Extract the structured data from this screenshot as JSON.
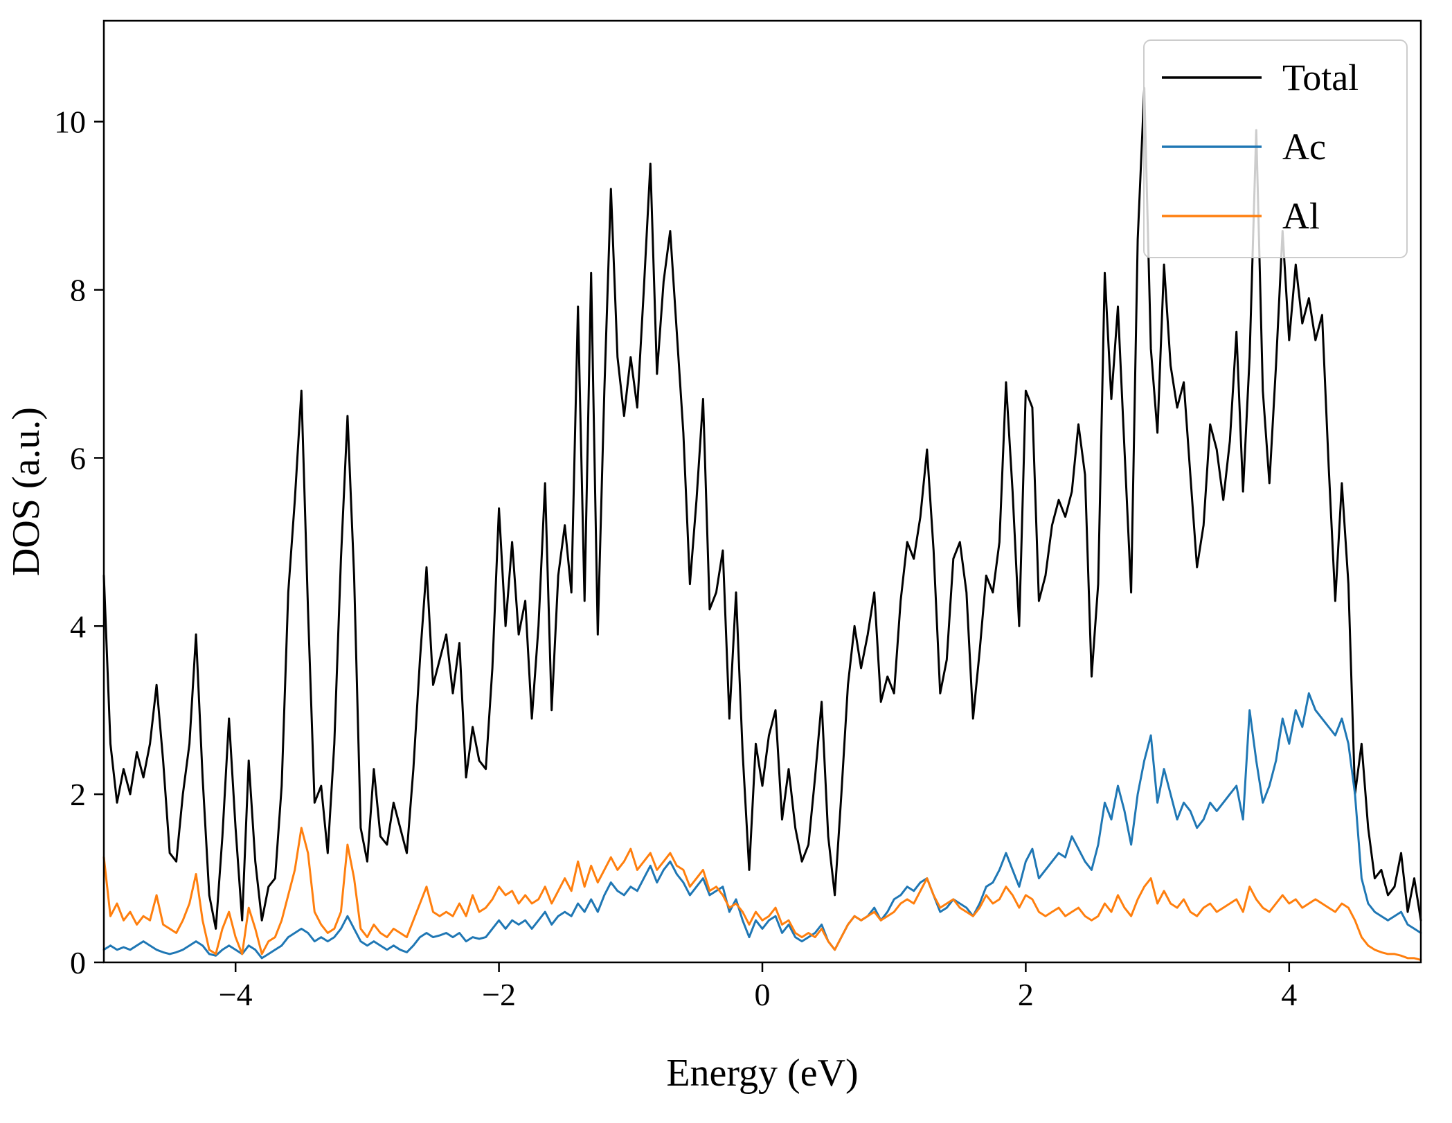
{
  "chart_data": {
    "type": "line",
    "title": "",
    "xlabel": "Energy (eV)",
    "ylabel": "DOS (a.u.)",
    "xlim": [
      -5,
      5
    ],
    "ylim": [
      0,
      11.2
    ],
    "x_ticks": [
      -4,
      -2,
      0,
      2,
      4
    ],
    "x_tick_labels": [
      "−4",
      "−2",
      "0",
      "2",
      "4"
    ],
    "y_ticks": [
      0,
      2,
      4,
      6,
      8,
      10
    ],
    "y_tick_labels": [
      "0",
      "2",
      "4",
      "6",
      "8",
      "10"
    ],
    "grid": false,
    "legend_position": "upper right",
    "x_start": -5.0,
    "x_step": 0.05,
    "series": [
      {
        "name": "Total",
        "color": "#000000",
        "values": [
          4.6,
          2.6,
          1.9,
          2.3,
          2.0,
          2.5,
          2.2,
          2.6,
          3.3,
          2.4,
          1.3,
          1.2,
          2.0,
          2.6,
          3.9,
          2.2,
          0.8,
          0.4,
          1.5,
          2.9,
          1.6,
          0.5,
          2.4,
          1.2,
          0.5,
          0.9,
          1.0,
          2.1,
          4.4,
          5.5,
          6.8,
          4.2,
          1.9,
          2.1,
          1.3,
          2.6,
          4.8,
          6.5,
          4.6,
          1.6,
          1.2,
          2.3,
          1.5,
          1.4,
          1.9,
          1.6,
          1.3,
          2.3,
          3.6,
          4.7,
          3.3,
          3.6,
          3.9,
          3.2,
          3.8,
          2.2,
          2.8,
          2.4,
          2.3,
          3.5,
          5.4,
          4.0,
          5.0,
          3.9,
          4.3,
          2.9,
          4.0,
          5.7,
          3.0,
          4.6,
          5.2,
          4.4,
          7.8,
          4.3,
          8.2,
          3.9,
          6.8,
          9.2,
          7.2,
          6.5,
          7.2,
          6.6,
          8.0,
          9.5,
          7.0,
          8.1,
          8.7,
          7.5,
          6.3,
          4.5,
          5.5,
          6.7,
          4.2,
          4.4,
          4.9,
          2.9,
          4.4,
          2.5,
          1.1,
          2.6,
          2.1,
          2.7,
          3.0,
          1.7,
          2.3,
          1.6,
          1.2,
          1.4,
          2.2,
          3.1,
          1.5,
          0.8,
          2.0,
          3.3,
          4.0,
          3.5,
          3.9,
          4.4,
          3.1,
          3.4,
          3.2,
          4.3,
          5.0,
          4.8,
          5.3,
          6.1,
          4.9,
          3.2,
          3.6,
          4.8,
          5.0,
          4.4,
          2.9,
          3.7,
          4.6,
          4.4,
          5.0,
          6.9,
          5.6,
          4.0,
          6.8,
          6.6,
          4.3,
          4.6,
          5.2,
          5.5,
          5.3,
          5.6,
          6.4,
          5.8,
          3.4,
          4.5,
          8.2,
          6.7,
          7.8,
          6.1,
          4.4,
          8.6,
          10.4,
          7.3,
          6.3,
          8.3,
          7.1,
          6.6,
          6.9,
          5.8,
          4.7,
          5.2,
          6.4,
          6.1,
          5.5,
          6.2,
          7.5,
          5.6,
          7.2,
          9.9,
          6.8,
          5.7,
          7.1,
          8.7,
          7.4,
          8.3,
          7.6,
          7.9,
          7.4,
          7.7,
          5.9,
          4.3,
          5.7,
          4.5,
          2.0,
          2.6,
          1.6,
          1.0,
          1.1,
          0.8,
          0.9,
          1.3,
          0.6,
          1.0,
          0.5
        ]
      },
      {
        "name": "Ac",
        "color": "#1f77b4",
        "values": [
          0.15,
          0.2,
          0.15,
          0.18,
          0.15,
          0.2,
          0.25,
          0.2,
          0.15,
          0.12,
          0.1,
          0.12,
          0.15,
          0.2,
          0.25,
          0.2,
          0.1,
          0.08,
          0.15,
          0.2,
          0.15,
          0.1,
          0.2,
          0.15,
          0.05,
          0.1,
          0.15,
          0.2,
          0.3,
          0.35,
          0.4,
          0.35,
          0.25,
          0.3,
          0.25,
          0.3,
          0.4,
          0.55,
          0.4,
          0.25,
          0.2,
          0.25,
          0.2,
          0.15,
          0.2,
          0.15,
          0.12,
          0.2,
          0.3,
          0.35,
          0.3,
          0.32,
          0.35,
          0.3,
          0.35,
          0.25,
          0.3,
          0.28,
          0.3,
          0.4,
          0.5,
          0.4,
          0.5,
          0.45,
          0.5,
          0.4,
          0.5,
          0.6,
          0.45,
          0.55,
          0.6,
          0.55,
          0.7,
          0.6,
          0.75,
          0.6,
          0.8,
          0.95,
          0.85,
          0.8,
          0.9,
          0.85,
          1.0,
          1.15,
          0.95,
          1.1,
          1.2,
          1.05,
          0.95,
          0.8,
          0.9,
          1.0,
          0.8,
          0.85,
          0.9,
          0.6,
          0.75,
          0.5,
          0.3,
          0.5,
          0.4,
          0.5,
          0.55,
          0.35,
          0.45,
          0.3,
          0.25,
          0.3,
          0.35,
          0.45,
          0.25,
          0.15,
          0.3,
          0.45,
          0.55,
          0.5,
          0.55,
          0.65,
          0.5,
          0.6,
          0.75,
          0.8,
          0.9,
          0.85,
          0.95,
          1.0,
          0.8,
          0.6,
          0.65,
          0.75,
          0.7,
          0.65,
          0.55,
          0.7,
          0.9,
          0.95,
          1.1,
          1.3,
          1.1,
          0.9,
          1.2,
          1.35,
          1.0,
          1.1,
          1.2,
          1.3,
          1.25,
          1.5,
          1.35,
          1.2,
          1.1,
          1.4,
          1.9,
          1.7,
          2.1,
          1.8,
          1.4,
          2.0,
          2.4,
          2.7,
          1.9,
          2.3,
          2.0,
          1.7,
          1.9,
          1.8,
          1.6,
          1.7,
          1.9,
          1.8,
          1.9,
          2.0,
          2.1,
          1.7,
          3.0,
          2.4,
          1.9,
          2.1,
          2.4,
          2.9,
          2.6,
          3.0,
          2.8,
          3.2,
          3.0,
          2.9,
          2.8,
          2.7,
          2.9,
          2.6,
          2.0,
          1.0,
          0.7,
          0.6,
          0.55,
          0.5,
          0.55,
          0.6,
          0.45,
          0.4,
          0.35
        ]
      },
      {
        "name": "Al",
        "color": "#ff7f0e",
        "values": [
          1.25,
          0.55,
          0.7,
          0.5,
          0.6,
          0.45,
          0.55,
          0.5,
          0.8,
          0.45,
          0.4,
          0.35,
          0.5,
          0.7,
          1.05,
          0.5,
          0.15,
          0.1,
          0.4,
          0.6,
          0.3,
          0.1,
          0.65,
          0.4,
          0.1,
          0.25,
          0.3,
          0.5,
          0.8,
          1.1,
          1.6,
          1.3,
          0.6,
          0.45,
          0.35,
          0.4,
          0.6,
          1.4,
          1.0,
          0.4,
          0.3,
          0.45,
          0.35,
          0.3,
          0.4,
          0.35,
          0.3,
          0.5,
          0.7,
          0.9,
          0.6,
          0.55,
          0.6,
          0.55,
          0.7,
          0.55,
          0.8,
          0.6,
          0.65,
          0.75,
          0.9,
          0.8,
          0.85,
          0.7,
          0.8,
          0.7,
          0.75,
          0.9,
          0.7,
          0.85,
          1.0,
          0.85,
          1.2,
          0.9,
          1.15,
          0.95,
          1.1,
          1.25,
          1.1,
          1.2,
          1.35,
          1.1,
          1.2,
          1.3,
          1.1,
          1.2,
          1.3,
          1.15,
          1.1,
          0.9,
          1.0,
          1.1,
          0.85,
          0.9,
          0.8,
          0.65,
          0.7,
          0.6,
          0.45,
          0.6,
          0.5,
          0.55,
          0.65,
          0.45,
          0.5,
          0.35,
          0.3,
          0.35,
          0.3,
          0.4,
          0.25,
          0.15,
          0.3,
          0.45,
          0.55,
          0.5,
          0.55,
          0.6,
          0.5,
          0.55,
          0.6,
          0.7,
          0.75,
          0.7,
          0.85,
          1.0,
          0.8,
          0.65,
          0.7,
          0.75,
          0.65,
          0.6,
          0.55,
          0.65,
          0.8,
          0.7,
          0.75,
          0.9,
          0.8,
          0.65,
          0.8,
          0.75,
          0.6,
          0.55,
          0.6,
          0.65,
          0.55,
          0.6,
          0.65,
          0.55,
          0.5,
          0.55,
          0.7,
          0.6,
          0.8,
          0.65,
          0.55,
          0.75,
          0.9,
          1.0,
          0.7,
          0.85,
          0.7,
          0.65,
          0.75,
          0.6,
          0.55,
          0.65,
          0.7,
          0.6,
          0.65,
          0.7,
          0.75,
          0.6,
          0.9,
          0.75,
          0.65,
          0.6,
          0.7,
          0.8,
          0.7,
          0.75,
          0.65,
          0.7,
          0.75,
          0.7,
          0.65,
          0.6,
          0.7,
          0.65,
          0.5,
          0.3,
          0.2,
          0.15,
          0.12,
          0.1,
          0.1,
          0.08,
          0.05,
          0.05,
          0.03
        ]
      }
    ],
    "legend": [
      {
        "label": "Total",
        "color": "#000000"
      },
      {
        "label": "Ac",
        "color": "#1f77b4"
      },
      {
        "label": "Al",
        "color": "#ff7f0e"
      }
    ]
  }
}
